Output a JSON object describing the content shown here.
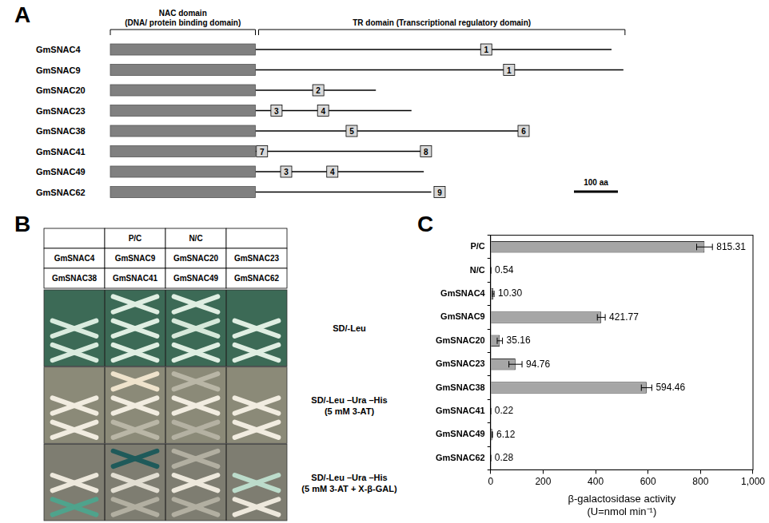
{
  "panels": {
    "A": {
      "label": "A",
      "nac_domain": {
        "title": "NAC domain",
        "subtitle": "(DNA/ protein binding domain)",
        "length_aa": 330,
        "color": "#808080"
      },
      "tr_domain": {
        "title": "TR domain (Transcriptional regulatory domain)"
      },
      "scale_bar": {
        "value": 100,
        "label": "100 aa"
      },
      "motif_color": "#d9d9d9",
      "proteins": [
        {
          "name": "GmSNAC4",
          "length_aa": 1140,
          "motifs": [
            {
              "label": 1,
              "position_aa": 855
            }
          ]
        },
        {
          "name": "GmSNAC9",
          "length_aa": 1167,
          "motifs": [
            {
              "label": 1,
              "position_aa": 907
            }
          ]
        },
        {
          "name": "GmSNAC20",
          "length_aa": 604,
          "motifs": [
            {
              "label": 2,
              "position_aa": 473
            }
          ]
        },
        {
          "name": "GmSNAC23",
          "length_aa": 685,
          "motifs": [
            {
              "label": 3,
              "position_aa": 378
            },
            {
              "label": 4,
              "position_aa": 484
            }
          ]
        },
        {
          "name": "GmSNAC38",
          "length_aa": 940,
          "motifs": [
            {
              "label": 5,
              "position_aa": 549
            },
            {
              "label": 6,
              "position_aa": 940
            }
          ]
        },
        {
          "name": "GmSNAC41",
          "length_aa": 713,
          "motifs": [
            {
              "label": 7,
              "position_aa": 345
            },
            {
              "label": 8,
              "position_aa": 718
            }
          ]
        },
        {
          "name": "GmSNAC49",
          "length_aa": 713,
          "motifs": [
            {
              "label": 3,
              "position_aa": 400
            },
            {
              "label": 4,
              "position_aa": 505
            }
          ]
        },
        {
          "name": "GmSNAC62",
          "length_aa": 730,
          "motifs": [
            {
              "label": 9,
              "position_aa": 749
            }
          ]
        }
      ]
    },
    "B": {
      "label": "B",
      "table": {
        "rows": [
          [
            "",
            "P/C",
            "N/C",
            ""
          ],
          [
            "GmSNAC4",
            "GmSNAC9",
            "GmSNAC20",
            "GmSNAC23"
          ],
          [
            "GmSNAC38",
            "GmSNAC41",
            "GmSNAC49",
            "GmSNAC62"
          ]
        ]
      },
      "plates": [
        {
          "label": [
            "SD/-Leu"
          ],
          "color": "#3c6a56",
          "streak_colors": [
            [
              null,
              "#dfeee2",
              "#dfeee2",
              null
            ],
            [
              "#d9ebde",
              "#dfeee2",
              "#d6e8da",
              "#dfeee2"
            ],
            [
              "#d9ebde",
              "#dfeee2",
              "#dfeee2",
              "#dfeee2"
            ]
          ]
        },
        {
          "label": [
            "SD/-Leu –Ura –His",
            "(5 mM 3-AT)"
          ],
          "color": "#8b8a78",
          "streak_colors": [
            [
              null,
              "#efe3cc",
              "#b9b6a6",
              null
            ],
            [
              "#f1ece0",
              "#f1ece0",
              "#f1ece0",
              "#f1ece0"
            ],
            [
              "#f1ece0",
              "#b9b6a6",
              "#b4b1a2",
              "#f1ece0"
            ]
          ]
        },
        {
          "label": [
            "SD/-Leu –Ura –His",
            "(5 mM 3-AT + X-β-GAL)"
          ],
          "color": "#7e7d71",
          "streak_colors": [
            [
              null,
              "#1f5a5a",
              "#b2afa1",
              null
            ],
            [
              "#ede8dc",
              "#e2ded2",
              "#ede8dc",
              "#bcdccb"
            ],
            [
              "#4fa38c",
              "#b2afa1",
              "#b2afa1",
              "#ede8dc"
            ]
          ]
        }
      ]
    },
    "C": {
      "label": "C"
    }
  },
  "chart_data": {
    "type": "bar",
    "orientation": "horizontal",
    "categories": [
      "P/C",
      "N/C",
      "GmSNAC4",
      "GmSNAC9",
      "GmSNAC20",
      "GmSNAC23",
      "GmSNAC38",
      "GmSNAC41",
      "GmSNAC49",
      "GmSNAC62"
    ],
    "values": [
      815.31,
      0.54,
      10.3,
      421.77,
      35.16,
      94.76,
      594.46,
      0.22,
      6.12,
      0.28
    ],
    "value_labels": [
      "815.31",
      "0.54",
      "10.30",
      "421.77",
      "35.16",
      "94.76",
      "594.46",
      "0.22",
      "6.12",
      "0.28"
    ],
    "errors": [
      30,
      0.2,
      3,
      15,
      10,
      25,
      20,
      0.1,
      1,
      0.1
    ],
    "color": "#a6a6a6",
    "data_labels": true,
    "xlabel": [
      "β-galactosidase activity",
      "(U=nmol min⁻¹)"
    ],
    "xlim": [
      0,
      1000
    ],
    "xticks": [
      0,
      200,
      400,
      600,
      800,
      1000
    ],
    "grid": false
  }
}
